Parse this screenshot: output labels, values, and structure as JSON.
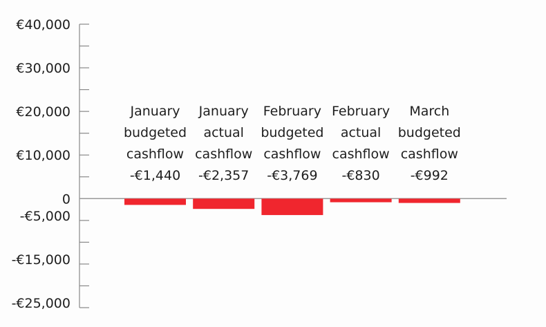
{
  "chart_data": {
    "type": "bar",
    "title": "",
    "xlabel": "",
    "ylabel": "",
    "ylim": [
      -25000,
      40000
    ],
    "grid": false,
    "y_ticks": [
      40000,
      35000,
      30000,
      25000,
      20000,
      15000,
      10000,
      5000,
      0,
      -5000,
      -10000,
      -15000,
      -20000,
      -25000
    ],
    "y_tick_labels": [
      {
        "value": 40000,
        "label": "€40,000"
      },
      {
        "value": 30000,
        "label": "€30,000"
      },
      {
        "value": 20000,
        "label": "€20,000"
      },
      {
        "value": 10000,
        "label": "€10,000"
      },
      {
        "value": 0,
        "label": "0"
      },
      {
        "value": -5000,
        "label": "-€5,000"
      },
      {
        "value": -15000,
        "label": "-€15,000"
      },
      {
        "value": -25000,
        "label": "-€25,000"
      }
    ],
    "bar_color": "#f0262e",
    "categories": [
      [
        "January",
        "budgeted",
        "cashflow"
      ],
      [
        "January",
        "actual",
        "cashflow"
      ],
      [
        "February",
        "budgeted",
        "cashflow"
      ],
      [
        "February",
        "actual",
        "cashflow"
      ],
      [
        "March",
        "budgeted",
        "cashflow"
      ]
    ],
    "values": [
      -1440,
      -2357,
      -3769,
      -830,
      -992
    ],
    "data_labels": [
      "-€1,440",
      "-€2,357",
      "-€3,769",
      "-€830",
      "-€992"
    ]
  }
}
